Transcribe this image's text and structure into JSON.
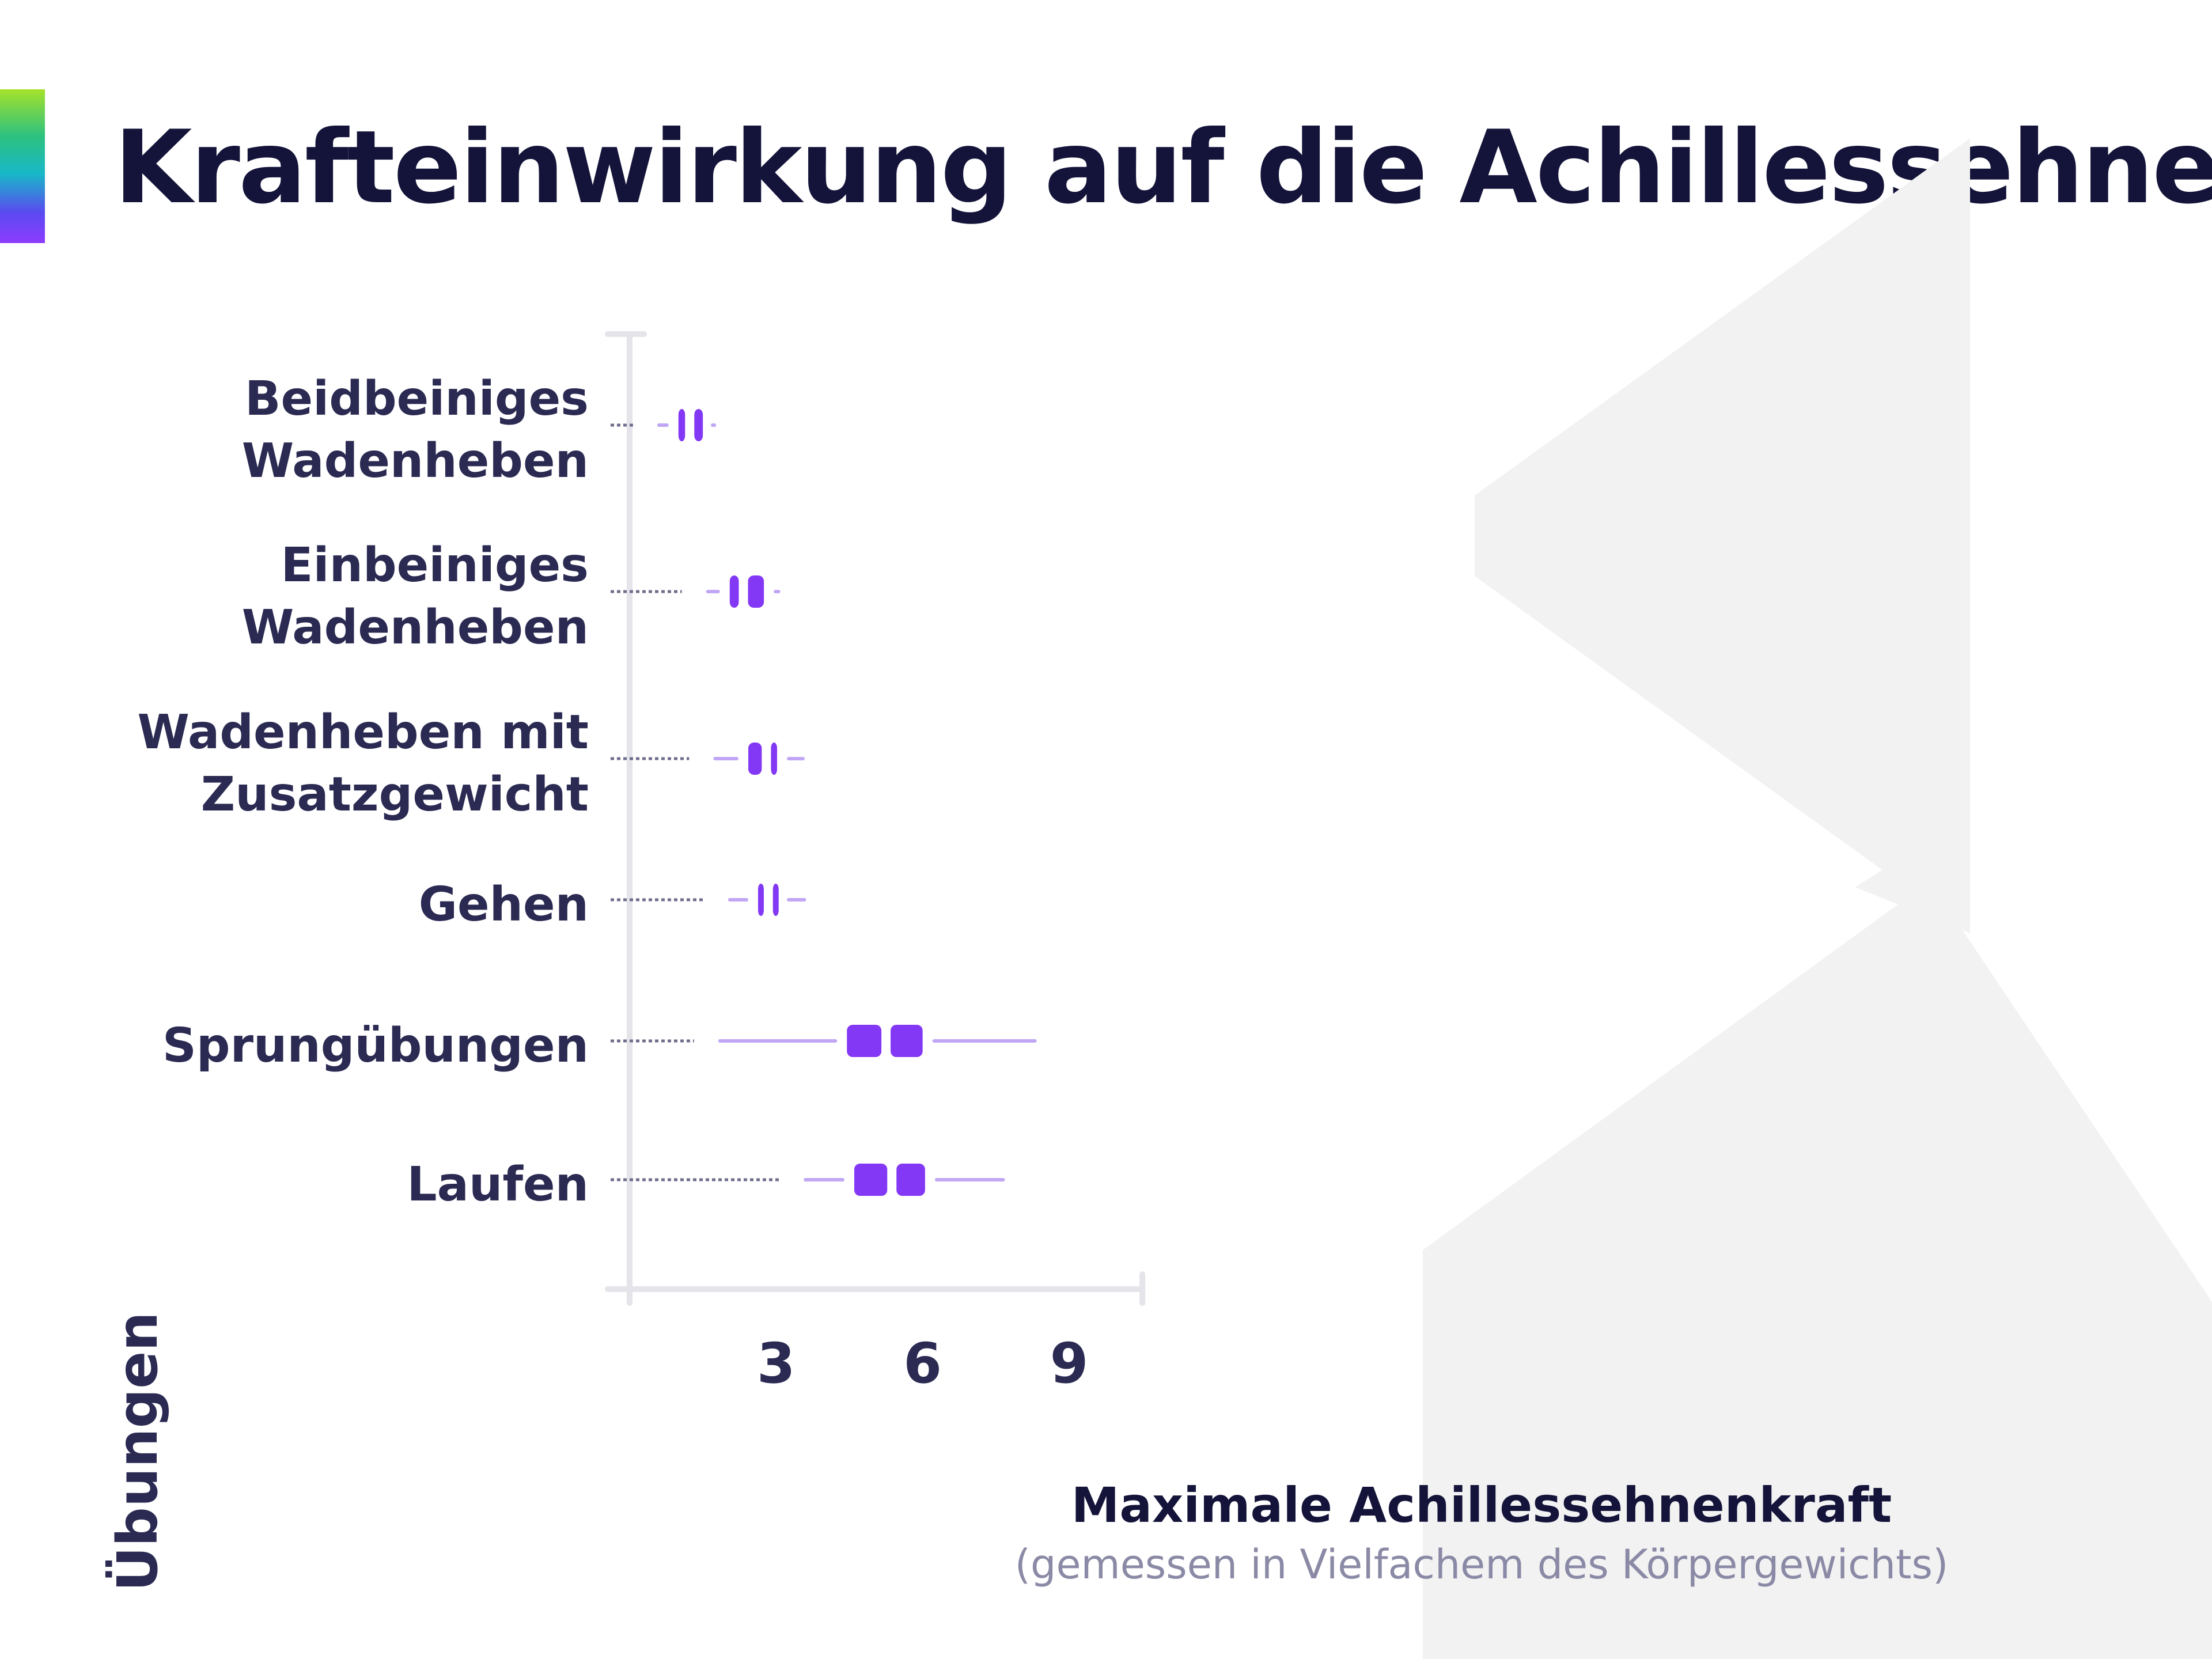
{
  "title": "Krafteinwirkung auf die Achillessehne",
  "colors": {
    "box": "#8338f5",
    "whisker": "#c0a6f5",
    "dotted": "#6e6e8c",
    "axis": "#e4e4ea",
    "label": "#2b2a52",
    "title": "#14143a",
    "subtitle": "#8b8aa6",
    "watermark": "#f2f2f3"
  },
  "chart_data": {
    "type": "boxplot",
    "title": "Krafteinwirkung auf die Achillessehne",
    "ylabel": "Übungen",
    "xlabel": "Maximale Achillessehnenkraft",
    "xlabel_note": "(gemessen in Vielfachem des Körpergewichts)",
    "xlim": [
      0.28,
      10.5
    ],
    "xticks": [
      3,
      6,
      9
    ],
    "xtick_labels": [
      "3",
      "6",
      "9"
    ],
    "series": [
      {
        "label": "Beidbeiniges Wadenheben",
        "label_lines": [
          "Beidbeiniges",
          "Wadenheben"
        ],
        "min": 0.6,
        "q1": 1.0,
        "median": 1.23,
        "q3": 1.5,
        "max": 1.7
      },
      {
        "label": "Einbeiniges Wadenheben",
        "label_lines": [
          "Einbeiniges",
          "Wadenheben"
        ],
        "min": 1.6,
        "q1": 2.05,
        "median": 2.33,
        "q3": 2.75,
        "max": 3.05
      },
      {
        "label": "Wadenheben mit Zusatzgewicht",
        "label_lines": [
          "Wadenheben mit",
          "Zusatzgewicht"
        ],
        "min": 1.75,
        "q1": 2.43,
        "median": 2.8,
        "q3": 3.02,
        "max": 3.55
      },
      {
        "label": "Gehen",
        "label_lines": [
          "Gehen"
        ],
        "min": 2.05,
        "q1": 2.63,
        "median": 2.84,
        "q3": 3.02,
        "max": 3.58
      },
      {
        "label": "Sprungübungen",
        "label_lines": [
          "Sprungübungen"
        ],
        "min": 1.85,
        "q1": 4.45,
        "median": 5.25,
        "q3": 6.0,
        "max": 8.3
      },
      {
        "label": "Laufen",
        "label_lines": [
          "Laufen"
        ],
        "min": 3.6,
        "q1": 4.6,
        "median": 5.37,
        "q3": 6.05,
        "max": 7.65
      }
    ]
  }
}
